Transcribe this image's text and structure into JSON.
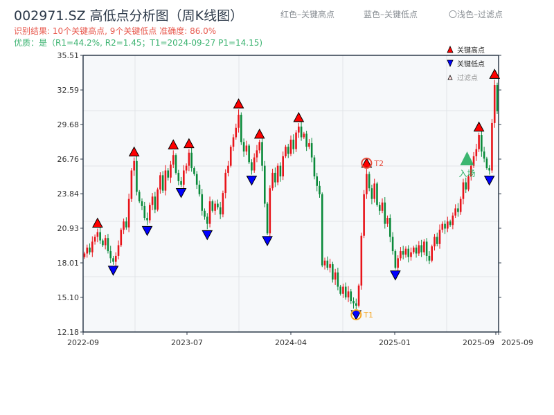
{
  "title": "002971.SZ 高低点分析图（周K线图）",
  "result_line": "识别结果: 10个关键高点, 9个关键低点  准确度: 86.0%",
  "quality_line": "优质：是（R1=44.2%, R2=1.45；T1=2024-09-27 P1=14.15)",
  "header_legend": {
    "red": "红色–关键高点",
    "blue": "蓝色–关键低点",
    "light": "〇浅色–过滤点"
  },
  "legend": {
    "high": "关键高点",
    "low": "关键低点",
    "filtered": "过滤点"
  },
  "colors": {
    "up": "#e8141a",
    "down": "#0a8a3a",
    "high_marker": "#ff0000",
    "low_marker": "#0000ff",
    "t1": "#f5a623",
    "t2": "#e74c3c",
    "entry": "#27ae60"
  },
  "chart_data": {
    "type": "candlestick",
    "ylim": [
      12.18,
      35.51
    ],
    "yticks": [
      "12.18",
      "15.10",
      "18.01",
      "20.93",
      "23.84",
      "26.76",
      "29.68",
      "32.59",
      "35.51"
    ],
    "xticks": [
      "2022-09",
      "2023-07",
      "2024-04",
      "2025-01",
      "2025-09",
      "2025-09"
    ],
    "grid": true,
    "legend_placement": "top-right",
    "closes": [
      18.8,
      19.3,
      18.9,
      19.8,
      20.2,
      20.6,
      19.9,
      19.5,
      20.1,
      19.0,
      18.4,
      18.1,
      18.6,
      19.5,
      20.8,
      21.5,
      21.0,
      23.4,
      25.8,
      26.6,
      24.0,
      23.2,
      22.8,
      21.8,
      21.6,
      22.9,
      23.6,
      22.5,
      24.2,
      25.4,
      24.1,
      25.8,
      25.2,
      26.3,
      27.1,
      25.6,
      24.9,
      24.6,
      25.8,
      26.2,
      27.3,
      26.0,
      25.5,
      24.6,
      23.8,
      22.4,
      21.9,
      21.3,
      23.2,
      22.4,
      23.0,
      22.7,
      22.1,
      23.9,
      25.6,
      26.2,
      27.8,
      28.6,
      29.4,
      30.5,
      28.2,
      27.4,
      27.9,
      26.5,
      25.8,
      26.9,
      27.5,
      28.2,
      26.2,
      23.0,
      20.5,
      24.3,
      25.6,
      24.8,
      26.2,
      25.3,
      27.0,
      27.8,
      27.2,
      28.4,
      27.6,
      29.0,
      29.5,
      28.6,
      28.9,
      27.8,
      28.1,
      26.9,
      25.3,
      24.5,
      23.8,
      17.8,
      18.2,
      17.6,
      17.9,
      16.6,
      17.2,
      16.0,
      15.4,
      16.0,
      15.1,
      15.6,
      14.8,
      14.6,
      14.4,
      16.1,
      20.3,
      23.8,
      25.5,
      24.3,
      23.4,
      24.7,
      22.9,
      22.4,
      23.1,
      21.3,
      21.8,
      20.2,
      19.0,
      17.6,
      18.4,
      19.0,
      18.7,
      19.2,
      18.5,
      18.9,
      19.3,
      18.8,
      19.5,
      18.9,
      19.8,
      18.6,
      18.2,
      19.4,
      20.2,
      19.6,
      20.8,
      21.3,
      20.9,
      21.5,
      21.2,
      22.0,
      22.6,
      22.3,
      23.4,
      24.8,
      24.2,
      25.3,
      26.2,
      27.0,
      27.6,
      28.8,
      27.4,
      26.8,
      26.0,
      25.8,
      29.8,
      33.0,
      30.8
    ],
    "key_highs": [
      5,
      19,
      34,
      40,
      59,
      67,
      82,
      108,
      151,
      157
    ],
    "key_lows": [
      11,
      24,
      37,
      47,
      64,
      70,
      104,
      119,
      155
    ],
    "t1": {
      "label": "T1",
      "index": 104
    },
    "t2": {
      "label": "T2",
      "index": 108
    },
    "entry": {
      "label": "入场",
      "index": 147
    }
  }
}
